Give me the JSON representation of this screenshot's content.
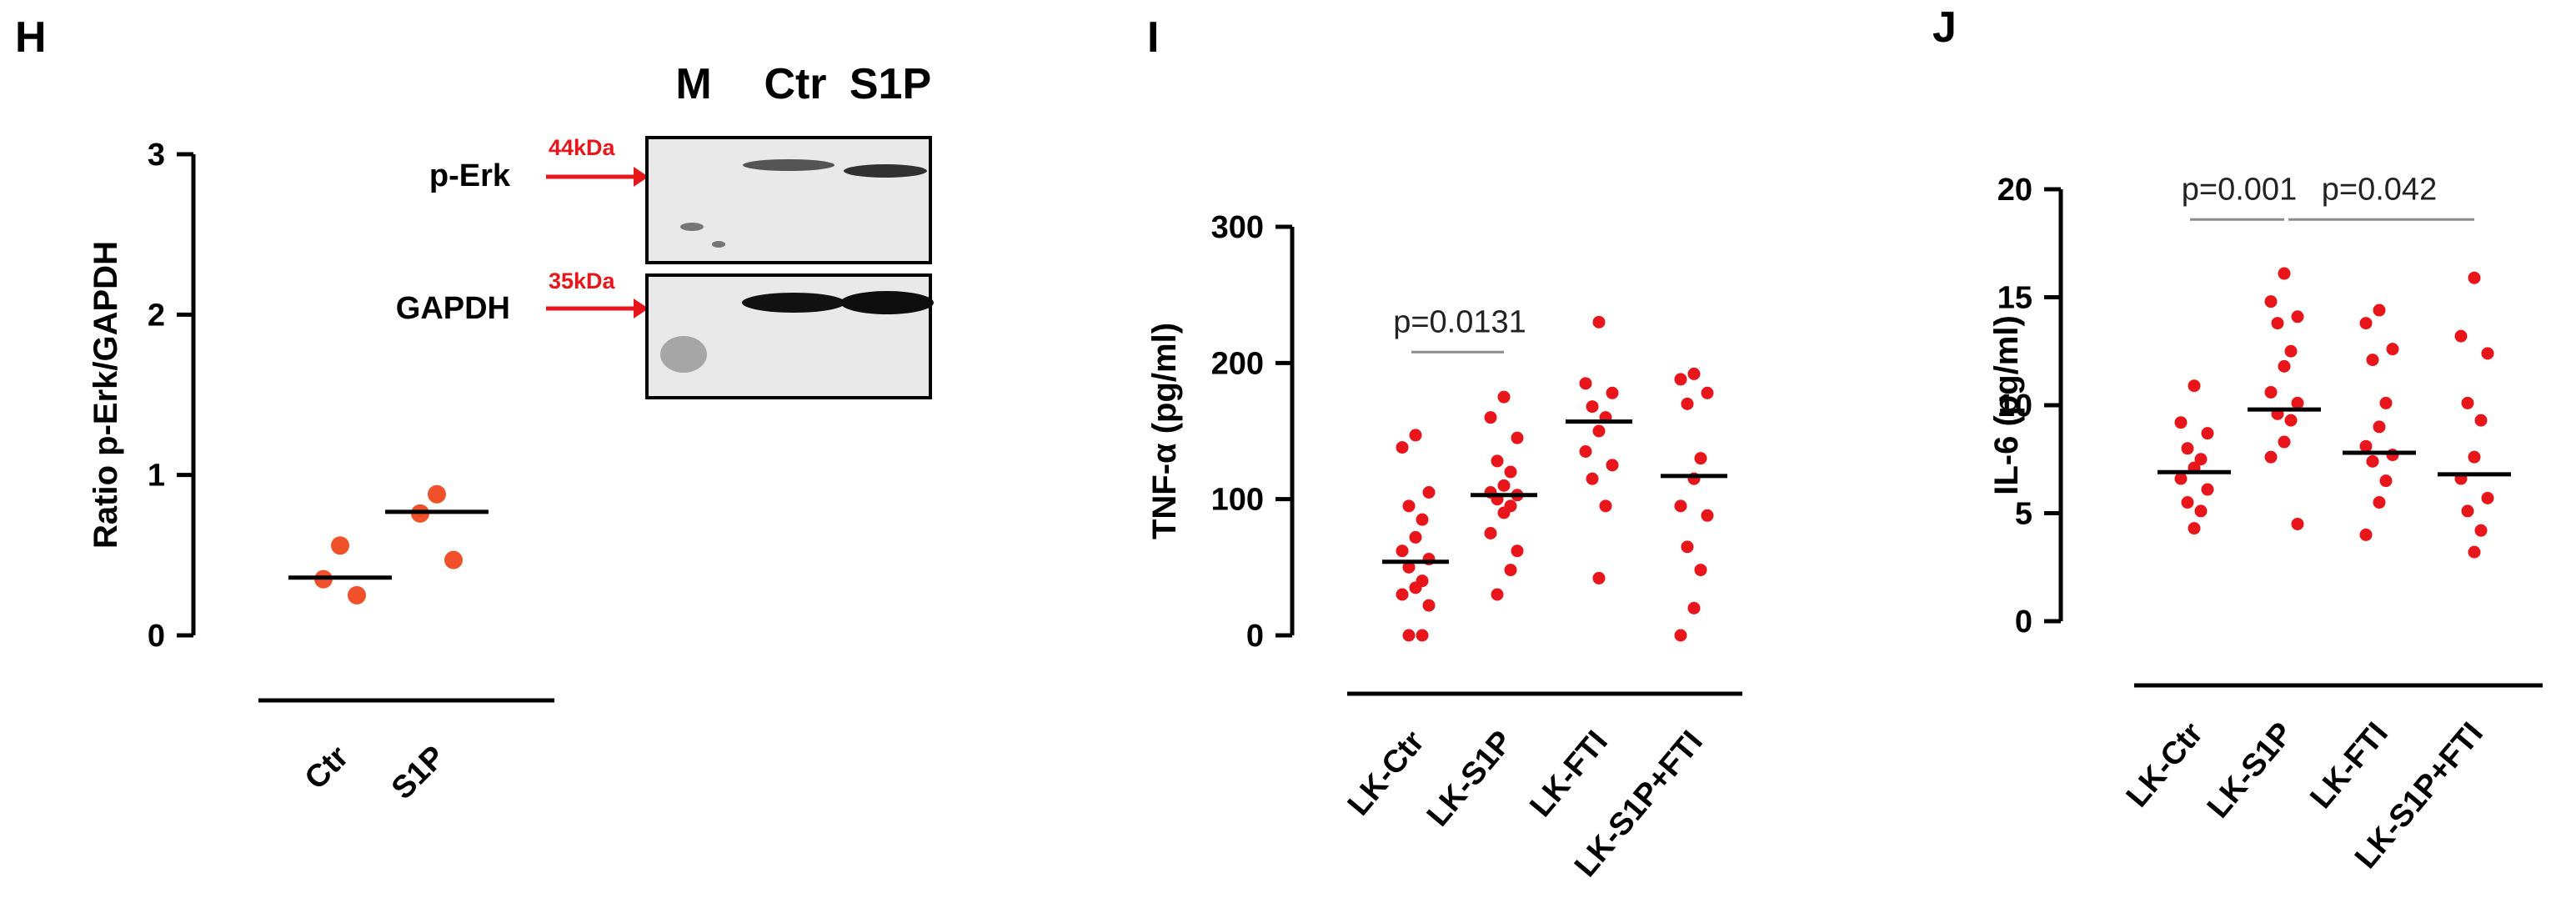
{
  "colors": {
    "point_red": "#e8161a",
    "point_orange": "#f0502a",
    "axis": "#000000",
    "sig_line": "#8c8c8c",
    "arrow": "#e8161a"
  },
  "panels": {
    "H": {
      "letter": "H"
    },
    "I": {
      "letter": "I"
    },
    "J": {
      "letter": "J"
    }
  },
  "blot": {
    "lanes": [
      "M",
      "Ctr",
      "S1P"
    ],
    "rows": [
      {
        "label": "p-Erk",
        "marker": "44kDa"
      },
      {
        "label": "GAPDH",
        "marker": "35kDa"
      }
    ]
  },
  "chart_data": [
    {
      "id": "H",
      "type": "scatter",
      "ylabel": "Ratio p-Erk/GAPDH",
      "ylim": [
        0,
        3
      ],
      "yticks": [
        0,
        1,
        2,
        3
      ],
      "categories": [
        "Ctr",
        "S1P"
      ],
      "points": [
        [
          0.56,
          0.35,
          0.25
        ],
        [
          0.88,
          0.76,
          0.47
        ]
      ],
      "medians": [
        0.36,
        0.77
      ]
    },
    {
      "id": "I",
      "type": "scatter",
      "ylabel": "TNF-α (pg/ml)",
      "ylim": [
        0,
        300
      ],
      "yticks": [
        0,
        100,
        200,
        300
      ],
      "categories": [
        "LK-Ctr",
        "LK-S1P",
        "LK-FTI",
        "LK-S1P+FTI"
      ],
      "points": [
        [
          147,
          138,
          105,
          95,
          85,
          72,
          62,
          56,
          50,
          40,
          35,
          30,
          22,
          0,
          0
        ],
        [
          175,
          160,
          145,
          128,
          120,
          110,
          105,
          103,
          100,
          95,
          90,
          75,
          62,
          48,
          30
        ],
        [
          230,
          185,
          178,
          168,
          160,
          150,
          135,
          125,
          115,
          95,
          42
        ],
        [
          192,
          188,
          178,
          170,
          130,
          115,
          95,
          88,
          65,
          48,
          20,
          0
        ]
      ],
      "medians": [
        54,
        103,
        157,
        117
      ],
      "significance": [
        {
          "from": 0,
          "to": 1,
          "label": "p=0.0131",
          "y": 208
        }
      ]
    },
    {
      "id": "J",
      "type": "scatter",
      "ylabel": "IL-6 (pg/ml)",
      "ylim": [
        0,
        20
      ],
      "yticks": [
        0,
        5,
        10,
        15,
        20
      ],
      "categories": [
        "LK-Ctr",
        "LK-S1P",
        "LK-FTI",
        "LK-S1P+FTI"
      ],
      "points": [
        [
          10.9,
          9.2,
          8.7,
          8.0,
          7.5,
          7.1,
          6.6,
          6.1,
          5.5,
          5.1,
          4.3
        ],
        [
          16.1,
          14.8,
          14.1,
          13.8,
          12.5,
          11.8,
          10.6,
          10.1,
          9.6,
          9.3,
          8.3,
          7.6,
          4.5
        ],
        [
          14.4,
          13.8,
          12.6,
          12.1,
          10.1,
          9.0,
          8.1,
          7.7,
          7.4,
          6.5,
          5.5,
          4.0
        ],
        [
          15.9,
          13.2,
          12.4,
          10.1,
          9.3,
          7.6,
          6.6,
          5.7,
          5.1,
          4.2,
          3.2
        ]
      ],
      "medians": [
        6.9,
        9.8,
        7.8,
        6.8
      ],
      "significance": [
        {
          "from": 0,
          "to": 1,
          "label": "p=0.001",
          "y": 18.6
        },
        {
          "from": 1,
          "to": 3,
          "label": "p=0.042",
          "y": 18.6
        }
      ]
    }
  ]
}
